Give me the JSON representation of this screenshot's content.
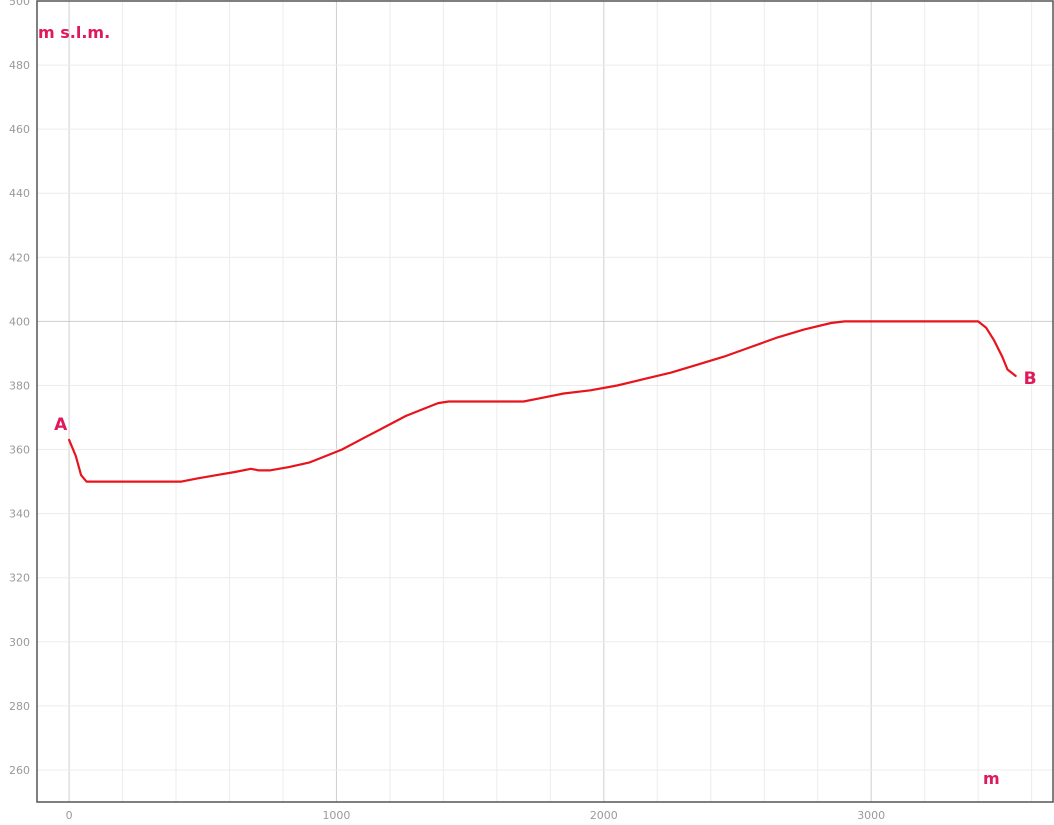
{
  "chart_data": {
    "type": "line",
    "title": "",
    "ylabel": "m s.l.m.",
    "xlabel": "m",
    "xlim": [
      -120,
      3680
    ],
    "ylim": [
      250,
      500
    ],
    "x_major_ticks": [
      0,
      1000,
      2000,
      3000
    ],
    "x_tick_labels": [
      "0",
      "1000",
      "2000",
      "3000"
    ],
    "x_minor_step": 200,
    "y_ticks": [
      260,
      280,
      300,
      320,
      340,
      360,
      380,
      400,
      420,
      440,
      460,
      480,
      500
    ],
    "y_tick_labels": [
      "260",
      "280",
      "300",
      "320",
      "340",
      "360",
      "380",
      "400",
      "420",
      "440",
      "460",
      "480",
      "500"
    ],
    "grid": true,
    "line_color": "#e8141c",
    "label_color": "#e0195a",
    "start_label": "A",
    "end_label": "B",
    "series": [
      {
        "x": [
          0,
          25,
          45,
          65,
          100,
          200,
          300,
          420,
          480,
          550,
          620,
          680,
          710,
          750,
          820,
          900,
          960,
          1020,
          1100,
          1180,
          1260,
          1320,
          1380,
          1420,
          1500,
          1600,
          1700,
          1760,
          1850,
          1950,
          2050,
          2150,
          2250,
          2350,
          2450,
          2550,
          2650,
          2750,
          2850,
          2900,
          3000,
          3100,
          3200,
          3300,
          3400,
          3430,
          3460,
          3490,
          3510,
          3540
        ],
        "y": [
          363,
          358,
          352,
          350,
          350,
          350,
          350,
          350,
          351,
          352,
          353,
          354,
          353.5,
          353.5,
          354.5,
          356,
          358,
          360,
          363.5,
          367,
          370.5,
          372.5,
          374.5,
          375,
          375,
          375,
          375,
          376,
          377.5,
          378.5,
          380,
          382,
          384,
          386.5,
          389,
          392,
          395,
          397.5,
          399.5,
          400,
          400,
          400,
          400,
          400,
          400,
          398,
          394,
          389,
          385,
          383
        ]
      }
    ]
  }
}
